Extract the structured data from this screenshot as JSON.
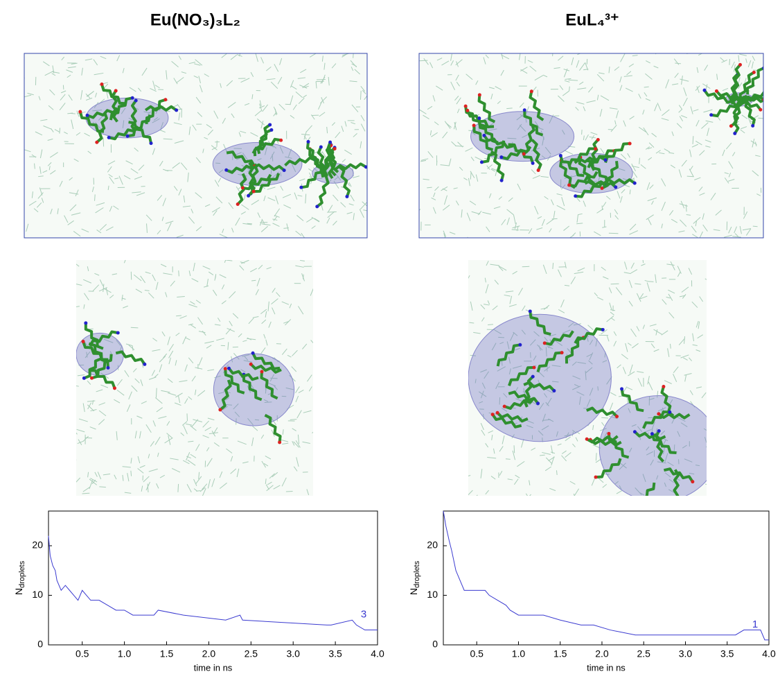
{
  "panel_titles": [
    "Eu(NO₃)₃L₂",
    "EuL₄³⁺"
  ],
  "chart_data": [
    {
      "type": "line",
      "xlabel": "time in ns",
      "ylabel": [
        "N",
        "droplets"
      ],
      "annotation": "3",
      "xlim": [
        0.1,
        4.0
      ],
      "ylim": [
        0,
        27
      ],
      "xticks": [
        0.5,
        {
          "value": 1,
          "label": "1.0"
        },
        1.5,
        {
          "value": 2,
          "label": "2.0"
        },
        2.5,
        {
          "value": 3,
          "label": "3.0"
        },
        3.5,
        {
          "value": 4,
          "label": "4.0"
        }
      ],
      "yticks": [
        0,
        10,
        20
      ],
      "series": [
        {
          "color": "#3a3ad0",
          "x": [
            0.1,
            0.12,
            0.15,
            0.18,
            0.2,
            0.25,
            0.3,
            0.35,
            0.4,
            0.45,
            0.5,
            0.55,
            0.6,
            0.7,
            0.8,
            0.9,
            1.0,
            1.1,
            1.35,
            1.4,
            1.7,
            2.2,
            2.37,
            2.4,
            3.4,
            3.45,
            3.7,
            3.75,
            3.85,
            4.0
          ],
          "values": [
            22,
            18,
            16,
            15,
            13,
            11,
            12,
            11,
            10,
            9,
            11,
            10,
            9,
            9,
            8,
            7,
            7,
            6,
            6,
            7,
            6,
            5,
            6,
            5,
            4,
            4,
            5,
            4,
            3,
            3
          ]
        }
      ]
    },
    {
      "type": "line",
      "xlabel": "time in ns",
      "ylabel": [
        "N",
        "droplets"
      ],
      "annotation": "1",
      "xlim": [
        0.1,
        4.0
      ],
      "ylim": [
        0,
        27
      ],
      "xticks": [
        0.5,
        {
          "value": 1,
          "label": "1.0"
        },
        1.5,
        {
          "value": 2,
          "label": "2.0"
        },
        2.5,
        {
          "value": 3,
          "label": "3.0"
        },
        3.5,
        {
          "value": 4,
          "label": "4.0"
        }
      ],
      "yticks": [
        0,
        10,
        20
      ],
      "series": [
        {
          "color": "#3a3ad0",
          "x": [
            0.1,
            0.13,
            0.17,
            0.2,
            0.25,
            0.3,
            0.35,
            0.6,
            0.65,
            0.75,
            0.85,
            0.9,
            1.0,
            1.1,
            1.3,
            1.5,
            1.75,
            1.9,
            2.1,
            2.4,
            3.6,
            3.7,
            3.9,
            3.95,
            4.0
          ],
          "values": [
            27,
            24,
            21,
            19,
            15,
            13,
            11,
            11,
            10,
            9,
            8,
            7,
            6,
            6,
            6,
            5,
            4,
            4,
            3,
            2,
            2,
            3,
            3,
            1,
            1
          ]
        }
      ]
    }
  ]
}
